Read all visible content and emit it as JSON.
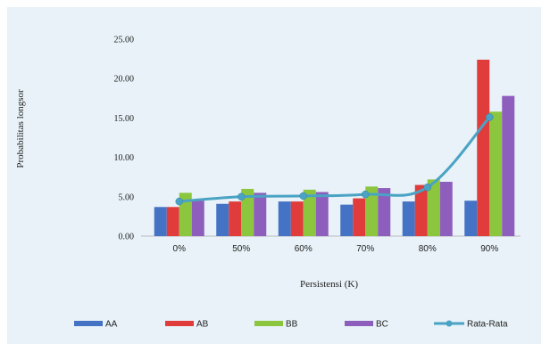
{
  "chart_data": {
    "type": "bar",
    "categories": [
      "0%",
      "50%",
      "60%",
      "70%",
      "80%",
      "90%"
    ],
    "series": [
      {
        "name": "AA",
        "type": "bar",
        "color": "#4472c4",
        "values": [
          3.7,
          4.1,
          4.4,
          4.0,
          4.4,
          4.5
        ]
      },
      {
        "name": "AB",
        "type": "bar",
        "color": "#e03c3c",
        "values": [
          3.7,
          4.4,
          4.4,
          4.8,
          6.5,
          22.4
        ]
      },
      {
        "name": "BB",
        "type": "bar",
        "color": "#8cc63f",
        "values": [
          5.5,
          6.0,
          5.9,
          6.3,
          7.2,
          15.8
        ]
      },
      {
        "name": "BC",
        "type": "bar",
        "color": "#8e5ebd",
        "values": [
          4.5,
          5.5,
          5.6,
          6.1,
          6.9,
          17.8
        ]
      },
      {
        "name": "Rata-Rata",
        "type": "line",
        "color": "#4aa3c4",
        "values": [
          4.4,
          5.0,
          5.1,
          5.3,
          6.2,
          15.1
        ]
      }
    ],
    "yticks": [
      "0.00",
      "5.00",
      "10.00",
      "15.00",
      "20.00",
      "25.00"
    ],
    "ylim": [
      0,
      25
    ],
    "xlabel": "Persistensi (K)",
    "ylabel": "Probabilitas longsor",
    "legend_position": "bottom",
    "grid": false
  }
}
